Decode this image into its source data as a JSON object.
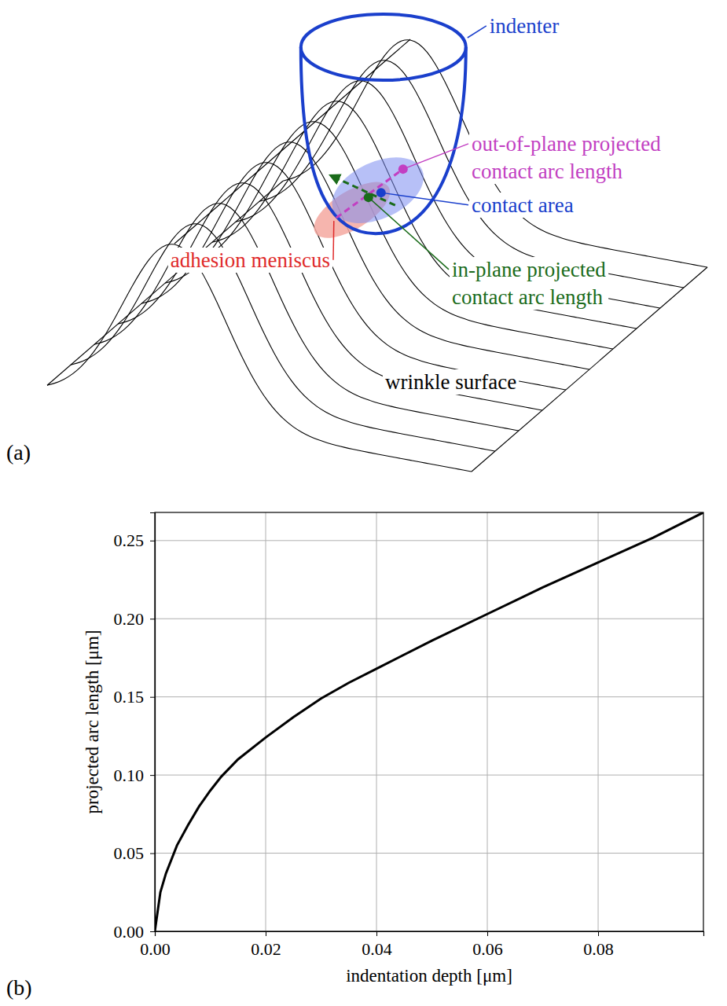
{
  "diagram": {
    "panel": "(a)",
    "labels": [
      {
        "lines": [
          "indenter"
        ],
        "color": "#1a3fcc"
      },
      {
        "lines": [
          "out-of-plane projected",
          "contact arc length"
        ],
        "color": "#c23fc2"
      },
      {
        "lines": [
          "contact area"
        ],
        "color": "#1a3fcc"
      },
      {
        "lines": [
          "adhesion meniscus"
        ],
        "color": "#e02a2a"
      },
      {
        "lines": [
          "in-plane projected",
          "contact arc length"
        ],
        "color": "#1a6b1a"
      },
      {
        "lines": [
          "wrinkle surface"
        ],
        "color": "#000000"
      }
    ]
  },
  "chart_data": {
    "type": "line",
    "annotations": [
      "(b)"
    ],
    "xlabel": "indentation depth [μm]",
    "ylabel": "projected arc length [μm]",
    "x": [
      0,
      0.001,
      0.002,
      0.004,
      0.006,
      0.008,
      0.01,
      0.012,
      0.015,
      0.02,
      0.025,
      0.03,
      0.035,
      0.04,
      0.05,
      0.06,
      0.07,
      0.08,
      0.09,
      0.099
    ],
    "values": [
      0,
      0.025,
      0.037,
      0.055,
      0.068,
      0.08,
      0.09,
      0.099,
      0.11,
      0.124,
      0.137,
      0.149,
      0.159,
      0.168,
      0.186,
      0.203,
      0.22,
      0.236,
      0.252,
      0.268
    ],
    "color": "#000000",
    "xlim": [
      0,
      0.099
    ],
    "ylim": [
      0,
      0.268
    ],
    "xticks": [
      {
        "value": 0,
        "label": "0.00"
      },
      {
        "value": 0.02,
        "label": "0.02"
      },
      {
        "value": 0.04,
        "label": "0.04"
      },
      {
        "value": 0.06,
        "label": "0.06"
      },
      {
        "value": 0.08,
        "label": "0.08"
      }
    ],
    "yticks": [
      {
        "value": 0,
        "label": "0.00"
      },
      {
        "value": 0.05,
        "label": "0.05"
      },
      {
        "value": 0.1,
        "label": "0.10"
      },
      {
        "value": 0.15,
        "label": "0.15"
      },
      {
        "value": 0.2,
        "label": "0.20"
      },
      {
        "value": 0.25,
        "label": "0.25"
      }
    ],
    "grid": true
  }
}
